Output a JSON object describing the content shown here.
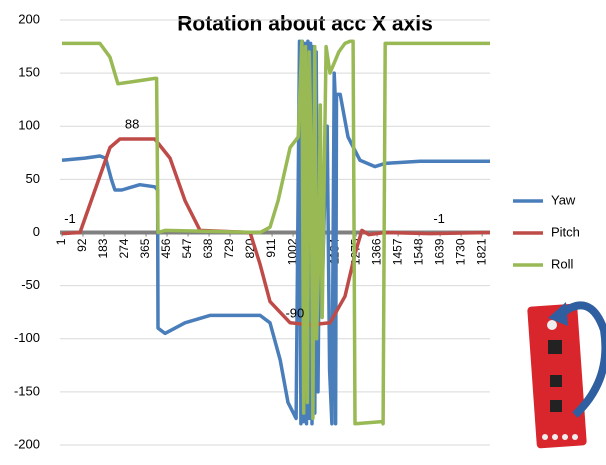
{
  "chart_data": {
    "type": "line",
    "title": "Rotation about acc X axis",
    "xlim": [
      1,
      1855
    ],
    "xticks": [
      1,
      92,
      183,
      274,
      365,
      456,
      547,
      638,
      729,
      820,
      911,
      1002,
      1093,
      1184,
      1275,
      1366,
      1457,
      1548,
      1639,
      1730,
      1821
    ],
    "ylim": [
      -200,
      200
    ],
    "yticks": [
      -200,
      -150,
      -100,
      -50,
      0,
      50,
      100,
      150,
      200
    ],
    "grid": true,
    "legend": "right",
    "series": [
      {
        "name": "Yaw",
        "color": "#4a7ebb",
        "x": [
          1,
          100,
          165,
          190,
          215,
          230,
          260,
          338,
          403,
          415,
          417,
          447,
          534,
          642,
          859,
          902,
          946,
          980,
          1015,
          1030,
          1036,
          1042,
          1048,
          1054,
          1060,
          1066,
          1072,
          1078,
          1084,
          1090,
          1096,
          1102,
          1110,
          1119,
          1130,
          1140,
          1150,
          1160,
          1170,
          1180,
          1184,
          1186,
          1190,
          1206,
          1240,
          1292,
          1357,
          1400,
          1552,
          1855
        ],
        "values": [
          68,
          70,
          72,
          70,
          50,
          40,
          40,
          45,
          43,
          40,
          -90,
          -95,
          -85,
          -78,
          -78,
          -85,
          -120,
          -160,
          -175,
          180,
          -180,
          180,
          -178,
          178,
          -180,
          180,
          -175,
          178,
          -180,
          175,
          -170,
          170,
          -150,
          90,
          -40,
          40,
          100,
          -130,
          -180,
          150,
          130,
          -180,
          130,
          130,
          90,
          68,
          62,
          65,
          67,
          67
        ]
      },
      {
        "name": "Pitch",
        "color": "#be4b48",
        "x": [
          1,
          79,
          144,
          209,
          252,
          403,
          469,
          534,
          599,
          816,
          859,
          902,
          989,
          1075,
          1162,
          1227,
          1270,
          1300,
          1330,
          1400,
          1595,
          1855
        ],
        "values": [
          -1,
          0,
          40,
          80,
          88,
          88,
          70,
          30,
          2,
          0,
          -30,
          -65,
          -85,
          -87,
          -85,
          -60,
          -20,
          2,
          -2,
          0,
          -1,
          0
        ]
      },
      {
        "name": "Roll",
        "color": "#98b954",
        "x": [
          1,
          165,
          209,
          243,
          338,
          403,
          411,
          417,
          447,
          859,
          902,
          937,
          989,
          1024,
          1040,
          1048,
          1056,
          1064,
          1072,
          1080,
          1088,
          1096,
          1104,
          1112,
          1120,
          1128,
          1136,
          1145,
          1162,
          1200,
          1227,
          1249,
          1262,
          1270,
          1388,
          1392,
          1401,
          1855
        ],
        "values": [
          178,
          178,
          165,
          140,
          143,
          145,
          145,
          0,
          2,
          0,
          5,
          30,
          80,
          90,
          180,
          -170,
          175,
          -160,
          170,
          80,
          -175,
          175,
          -100,
          -30,
          120,
          -80,
          40,
          175,
          150,
          170,
          178,
          180,
          180,
          -180,
          -178,
          -180,
          178,
          178
        ]
      }
    ],
    "annotations": [
      {
        "text": "-1",
        "x": 1,
        "y": -1
      },
      {
        "text": "88",
        "x": 270,
        "y": 88
      },
      {
        "text": "-90",
        "x": 975,
        "y": -90
      },
      {
        "text": "-1",
        "x": 1600,
        "y": -1
      }
    ]
  }
}
